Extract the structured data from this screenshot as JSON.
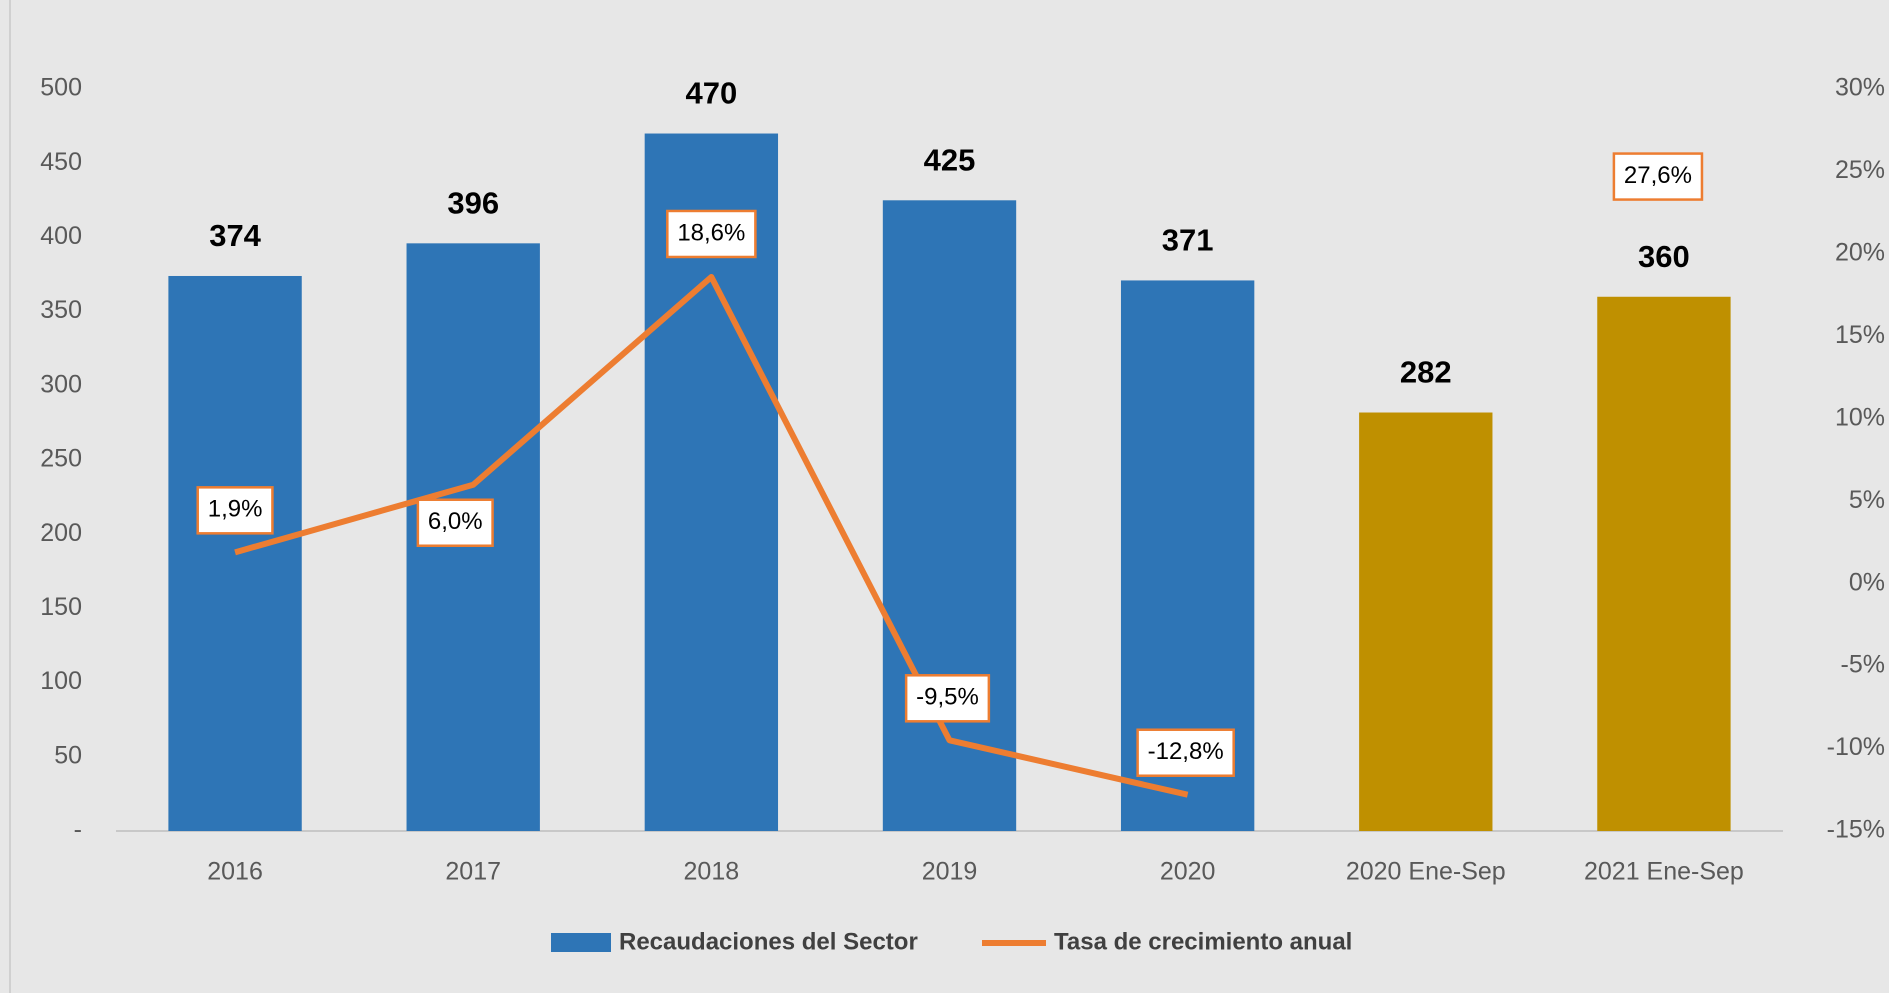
{
  "chart_data": {
    "type": "bar",
    "categories": [
      "2016",
      "2017",
      "2018",
      "2019",
      "2020",
      "2020 Ene-Sep",
      "2021 Ene-Sep"
    ],
    "series": [
      {
        "name": "Recaudaciones del Sector",
        "type": "bar",
        "color": "#2e75b6",
        "colors": [
          "#2e75b6",
          "#2e75b6",
          "#2e75b6",
          "#2e75b6",
          "#2e75b6",
          "#bf9000",
          "#bf9000"
        ],
        "values": [
          374,
          396,
          470,
          425,
          371,
          282,
          360
        ]
      },
      {
        "name": "Tasa de crecimiento anual",
        "type": "line",
        "axis": "y2",
        "color": "#ed7d31",
        "values": [
          1.9,
          6.0,
          18.6,
          -9.5,
          -12.8,
          null,
          27.6
        ],
        "value_labels": [
          "1,9%",
          "6,0%",
          "18,6%",
          "-9,5%",
          "-12,8%",
          null,
          "27,6%"
        ]
      }
    ],
    "ylim": [
      0,
      500
    ],
    "yticks": [
      {
        "value": 0,
        "label": "-"
      },
      50,
      100,
      150,
      200,
      250,
      300,
      350,
      400,
      450,
      500
    ],
    "y2lim": [
      -15,
      30
    ],
    "y2ticks": [
      {
        "value": -15,
        "label": "-15%"
      },
      {
        "value": -10,
        "label": "-10%"
      },
      {
        "value": -5,
        "label": "-5%"
      },
      {
        "value": 0,
        "label": "0%"
      },
      {
        "value": 5,
        "label": "5%"
      },
      {
        "value": 10,
        "label": "10%"
      },
      {
        "value": 15,
        "label": "15%"
      },
      {
        "value": 20,
        "label": "20%"
      },
      {
        "value": 25,
        "label": "25%"
      },
      {
        "value": 30,
        "label": "30%"
      }
    ],
    "grid": false,
    "legend": "bottom"
  }
}
